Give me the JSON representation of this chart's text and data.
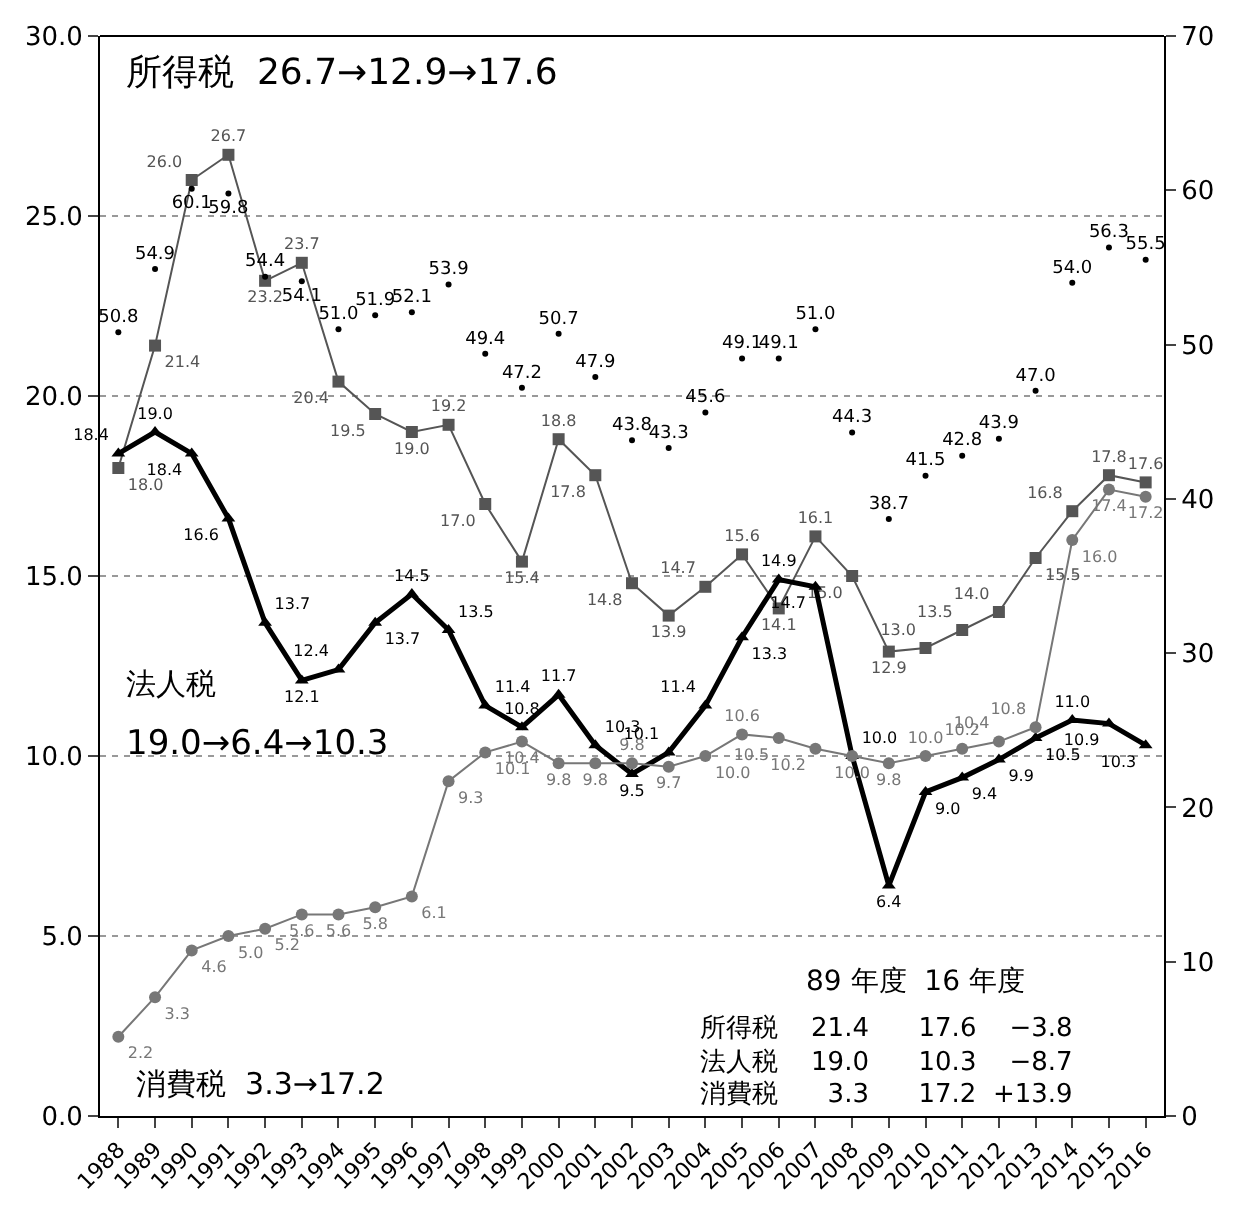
{
  "chart_data": {
    "type": "line",
    "categories": [
      "1988",
      "1989",
      "1990",
      "1991",
      "1992",
      "1993",
      "1994",
      "1995",
      "1996",
      "1997",
      "1998",
      "1999",
      "2000",
      "2001",
      "2002",
      "2003",
      "2004",
      "2005",
      "2006",
      "2007",
      "2008",
      "2009",
      "2010",
      "2011",
      "2012",
      "2013",
      "2014",
      "2015",
      "2016"
    ],
    "series": [
      {
        "color": "#555555",
        "marker": "square",
        "values": [
          18.0,
          21.4,
          26.0,
          26.7,
          23.2,
          23.7,
          20.4,
          19.5,
          19.0,
          19.2,
          17.0,
          15.4,
          18.8,
          17.8,
          14.8,
          13.9,
          14.7,
          15.6,
          14.1,
          16.1,
          15.0,
          12.9,
          13.0,
          13.5,
          14.0,
          15.5,
          16.8,
          17.8,
          17.6
        ],
        "value_labels": [
          "18.0",
          "21.4",
          "26.0",
          "26.7",
          "23.2",
          "23.7",
          "20.4",
          "19.5",
          "19.0",
          "19.2",
          "17.0",
          "15.4",
          "18.8",
          "17.8",
          "14.8",
          "13.9",
          "14.7",
          "15.6",
          "14.1",
          "16.1",
          "15.0",
          "12.9",
          "13.0",
          "13.5",
          "14.0",
          "15.5",
          "16.8",
          "17.8",
          "17.6"
        ]
      },
      {
        "color": "#000000",
        "marker": "triangle",
        "values": [
          18.4,
          19.0,
          18.4,
          16.6,
          13.7,
          12.1,
          12.4,
          13.7,
          14.5,
          13.5,
          11.4,
          10.8,
          11.7,
          10.3,
          9.5,
          10.1,
          11.4,
          13.3,
          14.9,
          14.7,
          10.0,
          6.4,
          9.0,
          9.4,
          9.9,
          10.5,
          11.0,
          10.9,
          10.3
        ],
        "value_labels": [
          "18.4",
          "19.0",
          "18.4",
          "16.6",
          "13.7",
          "12.1",
          "12.4",
          "13.7",
          "14.5",
          "13.5",
          "11.4",
          "10.8",
          "11.7",
          "10.3",
          "9.5",
          "10.1",
          "11.4",
          "13.3",
          "14.9",
          "14.7",
          "10.0",
          "6.4",
          "9.0",
          "9.4",
          "9.9",
          "10.5",
          "11.0",
          "10.9",
          "10.3"
        ]
      },
      {
        "color": "#777777",
        "marker": "circle",
        "values": [
          2.2,
          3.3,
          4.6,
          5.0,
          5.2,
          5.6,
          5.6,
          5.8,
          6.1,
          9.3,
          10.1,
          10.4,
          9.8,
          9.8,
          9.8,
          9.7,
          10.0,
          10.6,
          10.5,
          10.2,
          10.0,
          9.8,
          10.0,
          10.2,
          10.4,
          10.8,
          16.0,
          17.4,
          17.2
        ],
        "value_labels": [
          "2.2",
          "3.3",
          "4.6",
          "5.0",
          "5.2",
          "5.6",
          "5.6",
          "5.8",
          "6.1",
          "9.3",
          "10.1",
          "10.4",
          "9.8",
          "9.8",
          "9.8",
          "9.7",
          "10.0",
          "10.6",
          "10.5",
          "10.2",
          "10.0",
          "9.8",
          "10.0",
          "10.2",
          "10.4",
          "10.8",
          "16.0",
          "17.4",
          "17.2"
        ]
      },
      {
        "type": "scatter",
        "axis": "y2",
        "color": "#000000",
        "marker": "circle",
        "values": [
          50.8,
          54.9,
          60.1,
          59.8,
          54.4,
          54.1,
          51.0,
          51.9,
          52.1,
          53.9,
          49.4,
          47.2,
          50.7,
          47.9,
          43.8,
          43.3,
          45.6,
          49.1,
          49.1,
          51.0,
          44.3,
          38.7,
          41.5,
          42.8,
          43.9,
          47.0,
          54.0,
          56.3,
          55.5
        ],
        "value_labels": [
          "50.8",
          "54.9",
          "60.1",
          "59.8",
          "54.4",
          "54.1",
          "51.0",
          "51.9",
          "52.1",
          "53.9",
          "49.4",
          "47.2",
          "50.7",
          "47.9",
          "43.8",
          "43.3",
          "45.6",
          "49.1",
          "49.1",
          "51.0",
          "44.3",
          "38.7",
          "41.5",
          "42.8",
          "43.9",
          "47.0",
          "54.0",
          "56.3",
          "55.5"
        ]
      }
    ],
    "ylim": [
      0,
      30
    ],
    "yticks": [
      {
        "value": 0,
        "label": "0.0"
      },
      {
        "value": 5,
        "label": "5.0"
      },
      {
        "value": 10,
        "label": "10.0"
      },
      {
        "value": 15,
        "label": "15.0"
      },
      {
        "value": 20,
        "label": "20.0"
      },
      {
        "value": 25,
        "label": "25.0"
      },
      {
        "value": 30,
        "label": "30.0"
      }
    ],
    "y2lim": [
      0,
      70
    ],
    "y2ticks": [
      0,
      10,
      20,
      30,
      40,
      50,
      60,
      70
    ],
    "grid": "y",
    "line_style": "solid",
    "annotations": [
      "所得税  26.7→12.9→17.6",
      "法人税",
      "19.0→6.4→10.3",
      "消費税  3.3→17.2",
      "89 年度  16 年度",
      "所得税    21.4      17.6    −3.8",
      "法人税    19.0      10.3    −8.7",
      "消費税      3.3      17.2  +13.9"
    ]
  }
}
